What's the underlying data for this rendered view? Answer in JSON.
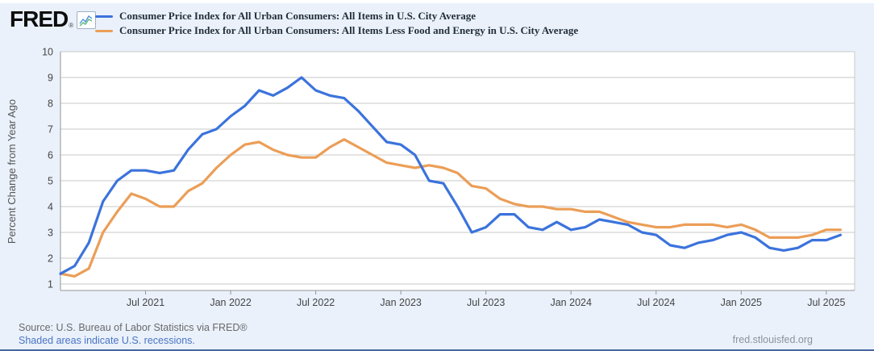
{
  "header": {
    "logo_text": "FRED",
    "logo_registered": "®"
  },
  "chart_data": {
    "type": "line",
    "title": "",
    "ylabel": "Percent Change from Year Ago",
    "xlabel": "",
    "ylim": [
      0.75,
      10
    ],
    "yticks": [
      1,
      2,
      3,
      4,
      5,
      6,
      7,
      8,
      9,
      10
    ],
    "grid": true,
    "legend_position": "top",
    "x": [
      "2021-01",
      "2021-02",
      "2021-03",
      "2021-04",
      "2021-05",
      "2021-06",
      "2021-07",
      "2021-08",
      "2021-09",
      "2021-10",
      "2021-11",
      "2021-12",
      "2022-01",
      "2022-02",
      "2022-03",
      "2022-04",
      "2022-05",
      "2022-06",
      "2022-07",
      "2022-08",
      "2022-09",
      "2022-10",
      "2022-11",
      "2022-12",
      "2023-01",
      "2023-02",
      "2023-03",
      "2023-04",
      "2023-05",
      "2023-06",
      "2023-07",
      "2023-08",
      "2023-09",
      "2023-10",
      "2023-11",
      "2023-12",
      "2024-01",
      "2024-02",
      "2024-03",
      "2024-04",
      "2024-05",
      "2024-06",
      "2024-07",
      "2024-08",
      "2024-09",
      "2024-10",
      "2024-11",
      "2024-12",
      "2025-01",
      "2025-02",
      "2025-03",
      "2025-04",
      "2025-05",
      "2025-06",
      "2025-07",
      "2025-08"
    ],
    "xticks": [
      {
        "index": 6,
        "label": "Jul 2021"
      },
      {
        "index": 12,
        "label": "Jan 2022"
      },
      {
        "index": 18,
        "label": "Jul 2022"
      },
      {
        "index": 24,
        "label": "Jan 2023"
      },
      {
        "index": 30,
        "label": "Jul 2023"
      },
      {
        "index": 36,
        "label": "Jan 2024"
      },
      {
        "index": 42,
        "label": "Jul 2024"
      },
      {
        "index": 48,
        "label": "Jan 2025"
      },
      {
        "index": 54,
        "label": "Jul 2025"
      }
    ],
    "series": [
      {
        "name": "Consumer Price Index for All Urban Consumers: All Items in U.S. City Average",
        "color": "#3b73dc",
        "values": [
          1.4,
          1.7,
          2.6,
          4.2,
          5.0,
          5.4,
          5.4,
          5.3,
          5.4,
          6.2,
          6.8,
          7.0,
          7.5,
          7.9,
          8.5,
          8.3,
          8.6,
          9.0,
          8.5,
          8.3,
          8.2,
          7.7,
          7.1,
          6.5,
          6.4,
          6.0,
          5.0,
          4.9,
          4.0,
          3.0,
          3.2,
          3.7,
          3.7,
          3.2,
          3.1,
          3.4,
          3.1,
          3.2,
          3.5,
          3.4,
          3.3,
          3.0,
          2.9,
          2.5,
          2.4,
          2.6,
          2.7,
          2.9,
          3.0,
          2.8,
          2.4,
          2.3,
          2.4,
          2.7,
          2.7,
          2.9
        ]
      },
      {
        "name": "Consumer Price Index for All Urban Consumers: All Items Less Food and Energy in U.S. City Average",
        "color": "#eb9e57",
        "values": [
          1.4,
          1.3,
          1.6,
          3.0,
          3.8,
          4.5,
          4.3,
          4.0,
          4.0,
          4.6,
          4.9,
          5.5,
          6.0,
          6.4,
          6.5,
          6.2,
          6.0,
          5.9,
          5.9,
          6.3,
          6.6,
          6.3,
          6.0,
          5.7,
          5.6,
          5.5,
          5.6,
          5.5,
          5.3,
          4.8,
          4.7,
          4.3,
          4.1,
          4.0,
          4.0,
          3.9,
          3.9,
          3.8,
          3.8,
          3.6,
          3.4,
          3.3,
          3.2,
          3.2,
          3.3,
          3.3,
          3.3,
          3.2,
          3.3,
          3.1,
          2.8,
          2.8,
          2.8,
          2.9,
          3.1,
          3.1
        ]
      }
    ],
    "colors": {
      "series1": "#3b73dc",
      "series2": "#eb9e57",
      "gridline": "#c9c9c9",
      "axis": "#949494",
      "background": "#eaf1fb"
    }
  },
  "footer": {
    "source": "Source: U.S. Bureau of Labor Statistics via FRED®",
    "recessions_note": "Shaded areas indicate U.S. recessions.",
    "site": "fred.stlouisfed.org"
  }
}
